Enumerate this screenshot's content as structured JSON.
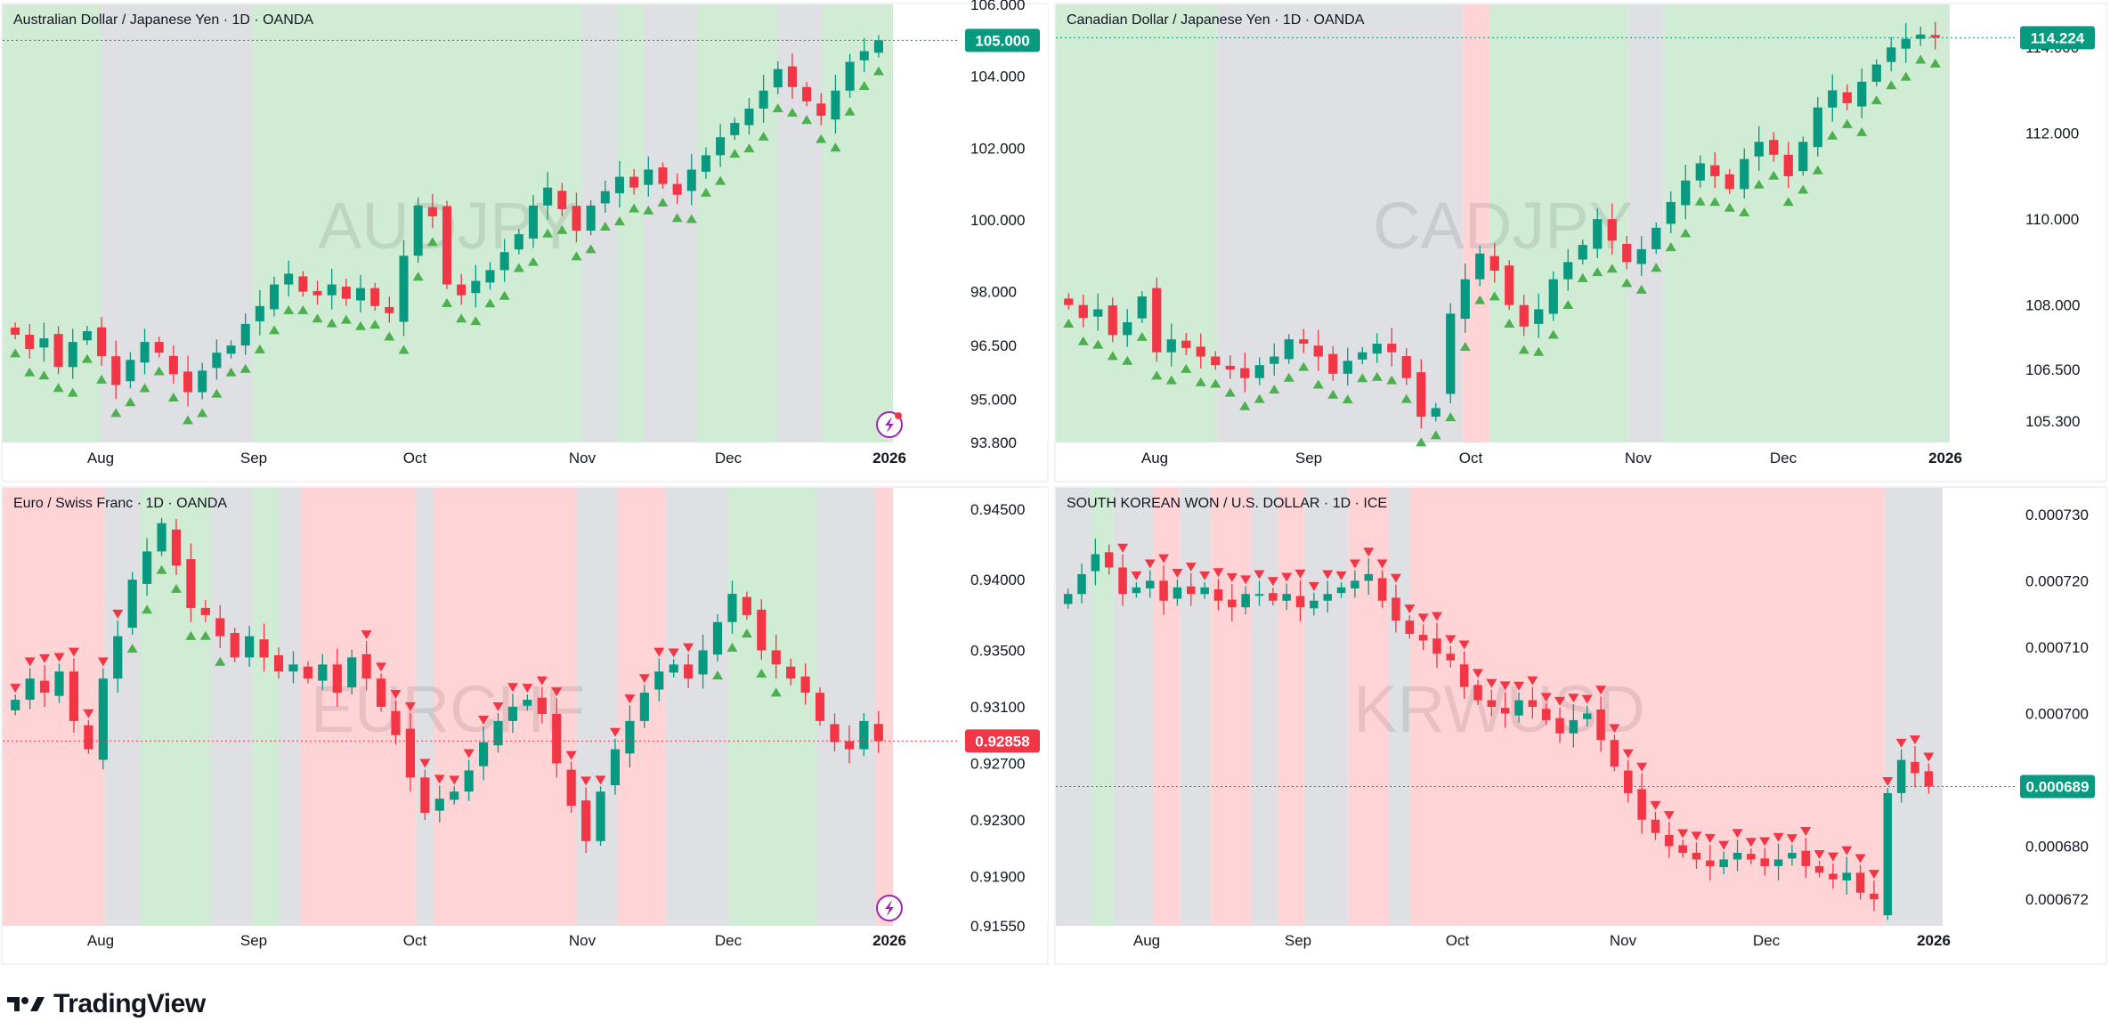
{
  "branding": {
    "logo_text": "TradingView"
  },
  "colors": {
    "up": "#089981",
    "down": "#f23645",
    "green_bg": "#d1ecd4",
    "red_bg": "#ffd4d7",
    "gray_bg": "#dfe0e4",
    "watermark": "#b2b5be",
    "signal_up": "#4caf50",
    "signal_down": "#f23645"
  },
  "charts": [
    {
      "id": "audjpy",
      "title": "Australian Dollar / Japanese Yen · 1D · OANDA",
      "watermark": "AUDJPY",
      "price_ticks": [
        "106.000",
        "104.000",
        "102.000",
        "100.000",
        "98.000",
        "96.500",
        "95.000",
        "93.800"
      ],
      "time_ticks": [
        "Aug",
        "Sep",
        "Oct",
        "Nov",
        "Dec",
        "2026"
      ],
      "last_price": "105.000",
      "last_price_color": "up",
      "has_alert_icon": true,
      "alert_dot": true,
      "signal": "up"
    },
    {
      "id": "cadjpy",
      "title": "Canadian Dollar / Japanese Yen · 1D · OANDA",
      "watermark": "CADJPY",
      "price_ticks": [
        "114.000",
        "112.000",
        "110.000",
        "108.000",
        "106.500",
        "105.300"
      ],
      "time_ticks": [
        "Aug",
        "Sep",
        "Oct",
        "Nov",
        "Dec",
        "2026"
      ],
      "last_price": "114.224",
      "last_price_color": "up",
      "has_alert_icon": false,
      "alert_dot": false,
      "signal": "up"
    },
    {
      "id": "eurchf",
      "title": "Euro / Swiss Franc · 1D · OANDA",
      "watermark": "EURCHF",
      "price_ticks": [
        "0.94500",
        "0.94000",
        "0.93500",
        "0.93100",
        "0.92700",
        "0.92300",
        "0.91900",
        "0.91550"
      ],
      "time_ticks": [
        "Aug",
        "Sep",
        "Oct",
        "Nov",
        "Dec",
        "2026"
      ],
      "last_price": "0.92858",
      "last_price_color": "down",
      "has_alert_icon": true,
      "alert_dot": false,
      "signal": "mixed"
    },
    {
      "id": "krwusd",
      "title": "SOUTH KOREAN WON / U.S. DOLLAR · 1D · ICE",
      "watermark": "KRWUSD",
      "price_ticks": [
        "0.000730",
        "0.000720",
        "0.000710",
        "0.000700",
        "0.000680",
        "0.000672"
      ],
      "time_ticks": [
        "Aug",
        "Sep",
        "Oct",
        "Nov",
        "Dec",
        "2026"
      ],
      "last_price": "0.000689",
      "last_price_color": "up",
      "has_alert_icon": false,
      "alert_dot": false,
      "signal": "down"
    }
  ],
  "chart_data": [
    {
      "type": "candlestick",
      "symbol": "AUDJPY",
      "title": "Australian Dollar / Japanese Yen · 1D · OANDA",
      "ylim": [
        93.8,
        106.0
      ],
      "x_ticks": [
        "Aug",
        "Sep",
        "Oct",
        "Nov",
        "Dec",
        "2026"
      ],
      "y_ticks": [
        106.0,
        104.0,
        102.0,
        100.0,
        98.0,
        96.5,
        95.0,
        93.8
      ],
      "last": 105.0,
      "close_path": [
        96.8,
        96.4,
        96.7,
        95.9,
        96.6,
        96.9,
        96.2,
        95.4,
        96.1,
        96.6,
        96.3,
        95.7,
        95.2,
        95.8,
        96.3,
        96.5,
        97.1,
        97.6,
        98.2,
        98.5,
        98.0,
        97.9,
        98.2,
        97.8,
        98.1,
        97.6,
        97.4,
        99.0,
        100.4,
        100.1,
        98.2,
        97.9,
        98.3,
        98.6,
        99.1,
        99.6,
        100.4,
        100.9,
        100.3,
        99.7,
        100.4,
        100.8,
        101.2,
        100.9,
        101.4,
        101.0,
        100.7,
        101.4,
        101.8,
        102.3,
        102.7,
        103.1,
        103.6,
        104.2,
        103.7,
        103.3,
        102.9,
        103.6,
        104.4,
        104.7,
        105.0
      ],
      "trend_signal": "up"
    },
    {
      "type": "candlestick",
      "symbol": "CADJPY",
      "title": "Canadian Dollar / Japanese Yen · 1D · OANDA",
      "ylim": [
        104.8,
        115.0
      ],
      "x_ticks": [
        "Aug",
        "Sep",
        "Oct",
        "Nov",
        "Dec",
        "2026"
      ],
      "y_ticks": [
        114.0,
        112.0,
        110.0,
        108.0,
        106.5,
        105.3
      ],
      "last": 114.224,
      "close_path": [
        108.0,
        107.7,
        107.9,
        107.3,
        107.6,
        108.2,
        106.9,
        107.2,
        107.0,
        106.8,
        106.6,
        106.5,
        106.3,
        106.6,
        106.8,
        107.2,
        107.1,
        106.8,
        106.4,
        106.7,
        106.9,
        107.1,
        106.9,
        106.3,
        105.4,
        105.6,
        107.8,
        108.6,
        109.2,
        108.8,
        108.0,
        107.5,
        107.9,
        108.6,
        109.0,
        109.4,
        110.0,
        109.5,
        109.0,
        109.3,
        109.8,
        110.4,
        110.9,
        111.3,
        111.0,
        110.7,
        111.4,
        111.8,
        111.5,
        111.0,
        111.8,
        112.6,
        113.0,
        112.7,
        113.2,
        113.6,
        114.0,
        114.2,
        114.3,
        114.224
      ],
      "trend_signal": "up"
    },
    {
      "type": "candlestick",
      "symbol": "EURCHF",
      "title": "Euro / Swiss Franc · 1D · OANDA",
      "ylim": [
        0.9155,
        0.9465
      ],
      "x_ticks": [
        "Aug",
        "Sep",
        "Oct",
        "Nov",
        "Dec",
        "2026"
      ],
      "y_ticks": [
        0.945,
        0.94,
        0.935,
        0.931,
        0.927,
        0.923,
        0.919,
        0.9155
      ],
      "last": 0.92858,
      "close_path": [
        0.9315,
        0.933,
        0.932,
        0.9335,
        0.93,
        0.928,
        0.933,
        0.936,
        0.94,
        0.942,
        0.944,
        0.941,
        0.938,
        0.9375,
        0.936,
        0.9345,
        0.936,
        0.9345,
        0.9335,
        0.934,
        0.933,
        0.934,
        0.932,
        0.9345,
        0.933,
        0.931,
        0.929,
        0.926,
        0.9235,
        0.9245,
        0.925,
        0.9265,
        0.9285,
        0.93,
        0.931,
        0.9315,
        0.9305,
        0.927,
        0.924,
        0.9215,
        0.925,
        0.928,
        0.93,
        0.932,
        0.9335,
        0.934,
        0.933,
        0.935,
        0.937,
        0.939,
        0.9375,
        0.935,
        0.934,
        0.933,
        0.932,
        0.93,
        0.9285,
        0.928,
        0.93,
        0.92858
      ],
      "trend_signal": "mixed"
    },
    {
      "type": "candlestick",
      "symbol": "KRWUSD",
      "title": "SOUTH KOREAN WON / U.S. DOLLAR · 1D · ICE",
      "ylim": [
        0.000668,
        0.000734
      ],
      "x_ticks": [
        "Aug",
        "Sep",
        "Oct",
        "Nov",
        "Dec",
        "2026"
      ],
      "y_ticks": [
        0.00073,
        0.00072,
        0.00071,
        0.0007,
        0.00068,
        0.000672
      ],
      "last": 0.000689,
      "close_path": [
        0.000718,
        0.000721,
        0.000724,
        0.000722,
        0.000718,
        0.000719,
        0.00072,
        0.000717,
        0.000719,
        0.000718,
        0.000719,
        0.000717,
        0.000716,
        0.000718,
        0.000718,
        0.000717,
        0.000718,
        0.000716,
        0.000717,
        0.000718,
        0.000719,
        0.00072,
        0.000721,
        0.000717,
        0.000714,
        0.000712,
        0.000711,
        0.000709,
        0.000708,
        0.000704,
        0.000702,
        0.000701,
        0.0007,
        0.000702,
        0.000701,
        0.000699,
        0.000697,
        0.000699,
        0.0007,
        0.000696,
        0.000692,
        0.000688,
        0.000684,
        0.000682,
        0.00068,
        0.000679,
        0.000678,
        0.000677,
        0.000678,
        0.000679,
        0.000678,
        0.000677,
        0.000678,
        0.000679,
        0.000677,
        0.000676,
        0.000675,
        0.000676,
        0.000673,
        0.000672,
        0.000688,
        0.000693,
        0.000691,
        0.000689
      ],
      "trend_signal": "down"
    }
  ]
}
